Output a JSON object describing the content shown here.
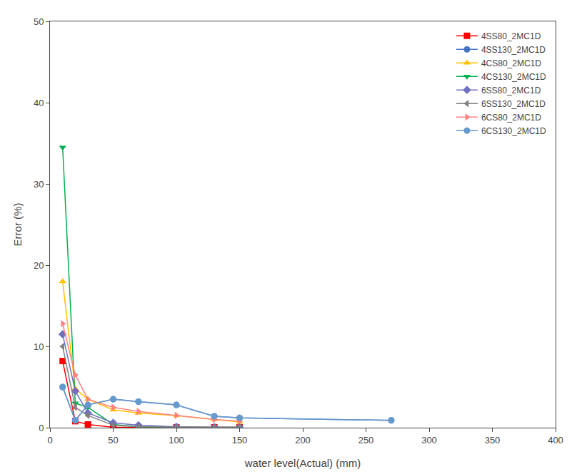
{
  "chart_data": {
    "type": "line",
    "xlabel": "water level(Actual) (mm)",
    "ylabel": "Error (%)",
    "xlim": [
      0,
      400
    ],
    "ylim": [
      0,
      50
    ],
    "xticks": [
      0,
      50,
      100,
      150,
      200,
      250,
      300,
      350,
      400
    ],
    "yticks": [
      0,
      10,
      20,
      30,
      40,
      50
    ],
    "grid": false,
    "legend": "upper right",
    "series": [
      {
        "name": "4SS80_2MC1D",
        "color": "#FF0000",
        "marker": "square",
        "x": [
          10,
          20,
          30,
          50,
          70,
          100,
          130,
          150
        ],
        "values": [
          8.2,
          0.8,
          0.4,
          0.05,
          0.05,
          0.05,
          0.05,
          0.05
        ]
      },
      {
        "name": "4SS130_2MC1D",
        "color": "#4472C4",
        "marker": "circle",
        "x": [
          10,
          20,
          30,
          50,
          70,
          100,
          130,
          150,
          270
        ],
        "values": [
          5.0,
          0.9,
          2.8,
          3.5,
          3.2,
          2.8,
          1.4,
          1.2,
          0.9
        ]
      },
      {
        "name": "4CS80_2MC1D",
        "color": "#FFC000",
        "marker": "triangle-up",
        "x": [
          10,
          20,
          30,
          50,
          70,
          100,
          130,
          150
        ],
        "values": [
          18.0,
          4.8,
          3.5,
          2.2,
          1.8,
          1.5,
          1.0,
          0.7
        ]
      },
      {
        "name": "4CS130_2MC1D",
        "color": "#00B050",
        "marker": "triangle-down",
        "x": [
          10,
          20,
          30,
          50,
          70,
          100,
          130,
          150
        ],
        "values": [
          34.5,
          3.0,
          2.5,
          0.4,
          0.1,
          0.05,
          0.05,
          0.05
        ]
      },
      {
        "name": "6SS80_2MC1D",
        "color": "#7070C0",
        "marker": "diamond",
        "x": [
          10,
          20,
          30,
          50,
          70,
          100,
          130,
          150
        ],
        "values": [
          11.5,
          4.5,
          1.8,
          0.6,
          0.3,
          0.1,
          0.05,
          0.05
        ]
      },
      {
        "name": "6SS130_2MC1D",
        "color": "#808080",
        "marker": "triangle-left",
        "x": [
          10,
          20,
          30,
          50,
          70,
          100,
          130,
          150
        ],
        "values": [
          10.0,
          2.5,
          1.5,
          0.3,
          0.1,
          0.05,
          0.05,
          0.05
        ]
      },
      {
        "name": "6CS80_2MC1D",
        "color": "#FF8080",
        "marker": "triangle-right",
        "x": [
          10,
          20,
          30,
          50,
          70,
          100,
          130,
          150
        ],
        "values": [
          12.8,
          6.5,
          3.5,
          2.5,
          2.0,
          1.5,
          1.0,
          0.8
        ]
      },
      {
        "name": "6CS130_2MC1D",
        "color": "#6699CC",
        "marker": "circle",
        "x": [
          10,
          20,
          30,
          50,
          70,
          100,
          130,
          150,
          270
        ],
        "values": [
          5.0,
          0.9,
          2.8,
          3.5,
          3.2,
          2.8,
          1.4,
          1.2,
          0.9
        ]
      }
    ]
  }
}
